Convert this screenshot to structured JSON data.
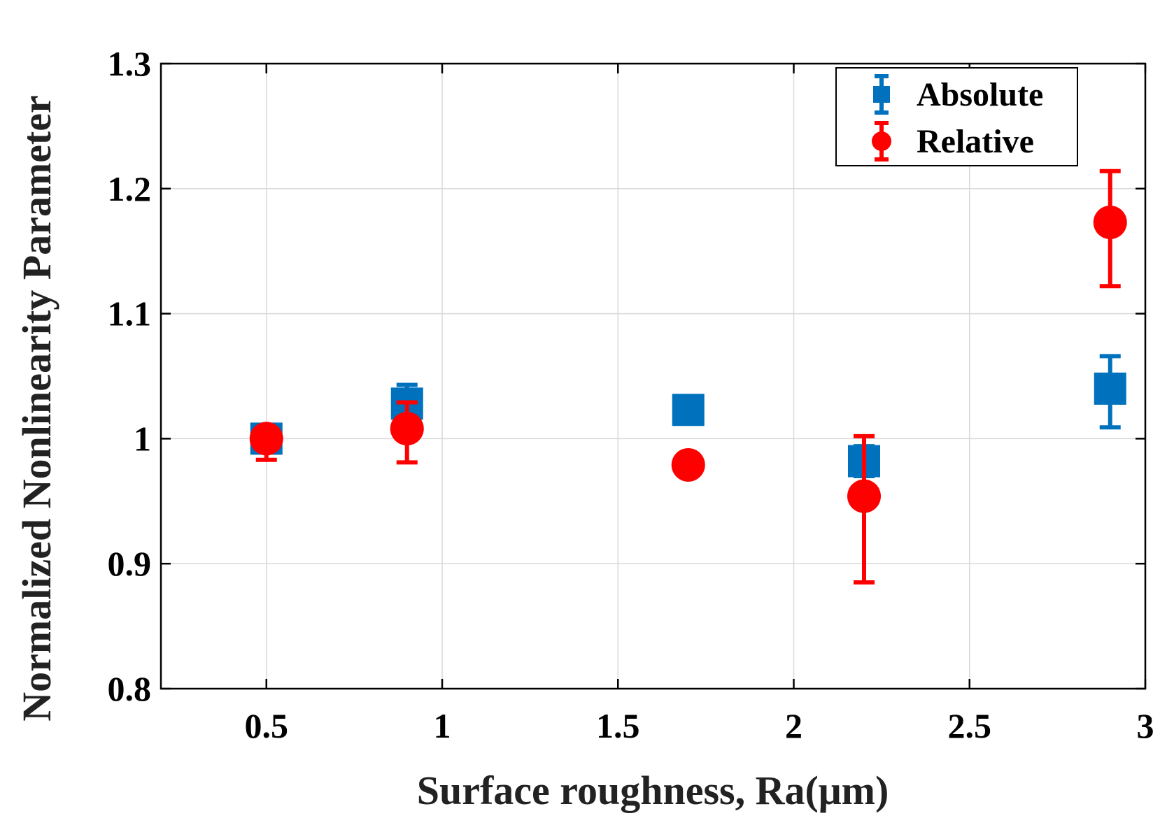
{
  "chart_data": {
    "type": "scatter",
    "title": "",
    "xlabel": "Surface roughness, Ra(μm)",
    "ylabel": "Normalized Nonlinearity Parameter",
    "xlim": [
      0.2,
      3.0
    ],
    "ylim": [
      0.8,
      1.3
    ],
    "xticks": [
      0.5,
      1,
      1.5,
      2,
      2.5,
      3
    ],
    "xtick_labels": [
      "0.5",
      "1",
      "1.5",
      "2",
      "2.5",
      "3"
    ],
    "yticks": [
      0.8,
      0.9,
      1.0,
      1.1,
      1.2,
      1.3
    ],
    "ytick_labels": [
      "0.8",
      "0.9",
      "1",
      "1.1",
      "1.2",
      "1.3"
    ],
    "grid": true,
    "legend_position": "top-right",
    "series": [
      {
        "name": "Absolute",
        "marker": "square",
        "color": "#0072BD",
        "x": [
          0.5,
          0.9,
          1.7,
          2.2,
          2.9
        ],
        "y": [
          1.0,
          1.028,
          1.023,
          0.982,
          1.04
        ],
        "err_low": [
          0.01,
          0.015,
          0.004,
          0.012,
          0.031
        ],
        "err_high": [
          0.01,
          0.015,
          0.004,
          0.012,
          0.026
        ]
      },
      {
        "name": "Relative",
        "marker": "circle",
        "color": "#FF0000",
        "x": [
          0.5,
          0.9,
          1.7,
          2.2,
          2.9
        ],
        "y": [
          1.0,
          1.008,
          0.979,
          0.954,
          1.173
        ],
        "err_low": [
          0.017,
          0.027,
          0.0,
          0.069,
          0.051
        ],
        "err_high": [
          0.0,
          0.021,
          0.0,
          0.048,
          0.041
        ]
      }
    ]
  }
}
